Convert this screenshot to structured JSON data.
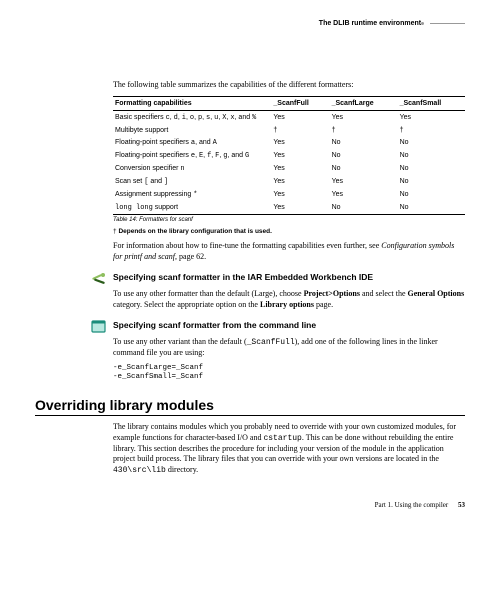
{
  "header": {
    "title": "The DLIB runtime environment"
  },
  "intro": "The following table summarizes the capabilities of the different formatters:",
  "table": {
    "columns": [
      "Formatting capabilities",
      "_ScanfFull",
      "_ScanfLarge",
      "_ScanfSmall"
    ],
    "rows": [
      {
        "cap": "Basic specifiers c, d, i, o, p, s, u, X, x, and %",
        "full": "Yes",
        "large": "Yes",
        "small": "Yes"
      },
      {
        "cap": "Multibyte support",
        "full": "†",
        "large": "†",
        "small": "†"
      },
      {
        "cap": "Floating-point specifiers a, and A",
        "full": "Yes",
        "large": "No",
        "small": "No"
      },
      {
        "cap": "Floating-point specifiers e, E, f, F, g, and G",
        "full": "Yes",
        "large": "No",
        "small": "No"
      },
      {
        "cap": "Conversion specifier n",
        "full": "Yes",
        "large": "No",
        "small": "No"
      },
      {
        "cap": "Scan set [ and ]",
        "full": "Yes",
        "large": "Yes",
        "small": "No"
      },
      {
        "cap": "Assignment suppressing *",
        "full": "Yes",
        "large": "Yes",
        "small": "No"
      },
      {
        "cap": "long long support",
        "full": "Yes",
        "large": "No",
        "small": "No"
      }
    ],
    "caption": "Table 14: Formatters for scanf",
    "footnote_symbol": "†",
    "footnote": "Depends on the library configuration that is used."
  },
  "para_info": "For information about how to fine-tune the formatting capabilities even further, see ",
  "para_info_ref": "Configuration symbols for printf and scanf",
  "para_info_suffix": ", page 62.",
  "sec_ide": {
    "title": "Specifying scanf formatter in the IAR Embedded Workbench IDE",
    "p1a": "To use any other formatter than the default (Large), choose ",
    "p1b": "Project>Options",
    "p1c": " and select the ",
    "p1d": "General Options",
    "p1e": " category. Select the appropriate option on the ",
    "p1f": "Library options",
    "p1g": " page."
  },
  "sec_cli": {
    "title": "Specifying scanf formatter from the command line",
    "p1a": "To use any other variant than the default (",
    "p1code": "_ScanfFull",
    "p1b": "), add one of the following lines in the linker command file you are using:",
    "code1": "-e_ScanfLarge=_Scanf",
    "code2": "-e_ScanfSmall=_Scanf"
  },
  "override": {
    "title": "Overriding library modules",
    "p1a": "The library contains modules which you probably need to override with your own customized modules, for example functions for character-based I/O and ",
    "p1code": "cstartup",
    "p1b": ". This can be done without rebuilding the entire library. This section describes the procedure for including your version of the module in the application project build process. The library files that you can override with your own versions are located in the ",
    "p1code2": "430\\src\\lib",
    "p1c": " directory."
  },
  "footer": {
    "part": "Part 1. Using the compiler",
    "page": "53"
  },
  "colors": {
    "tool_icon_bg": "#8fbf5f",
    "tool_icon_accent": "#2a5c1a",
    "cli_icon_border": "#1a8c7a",
    "cli_icon_fill": "#b8e8e0"
  }
}
